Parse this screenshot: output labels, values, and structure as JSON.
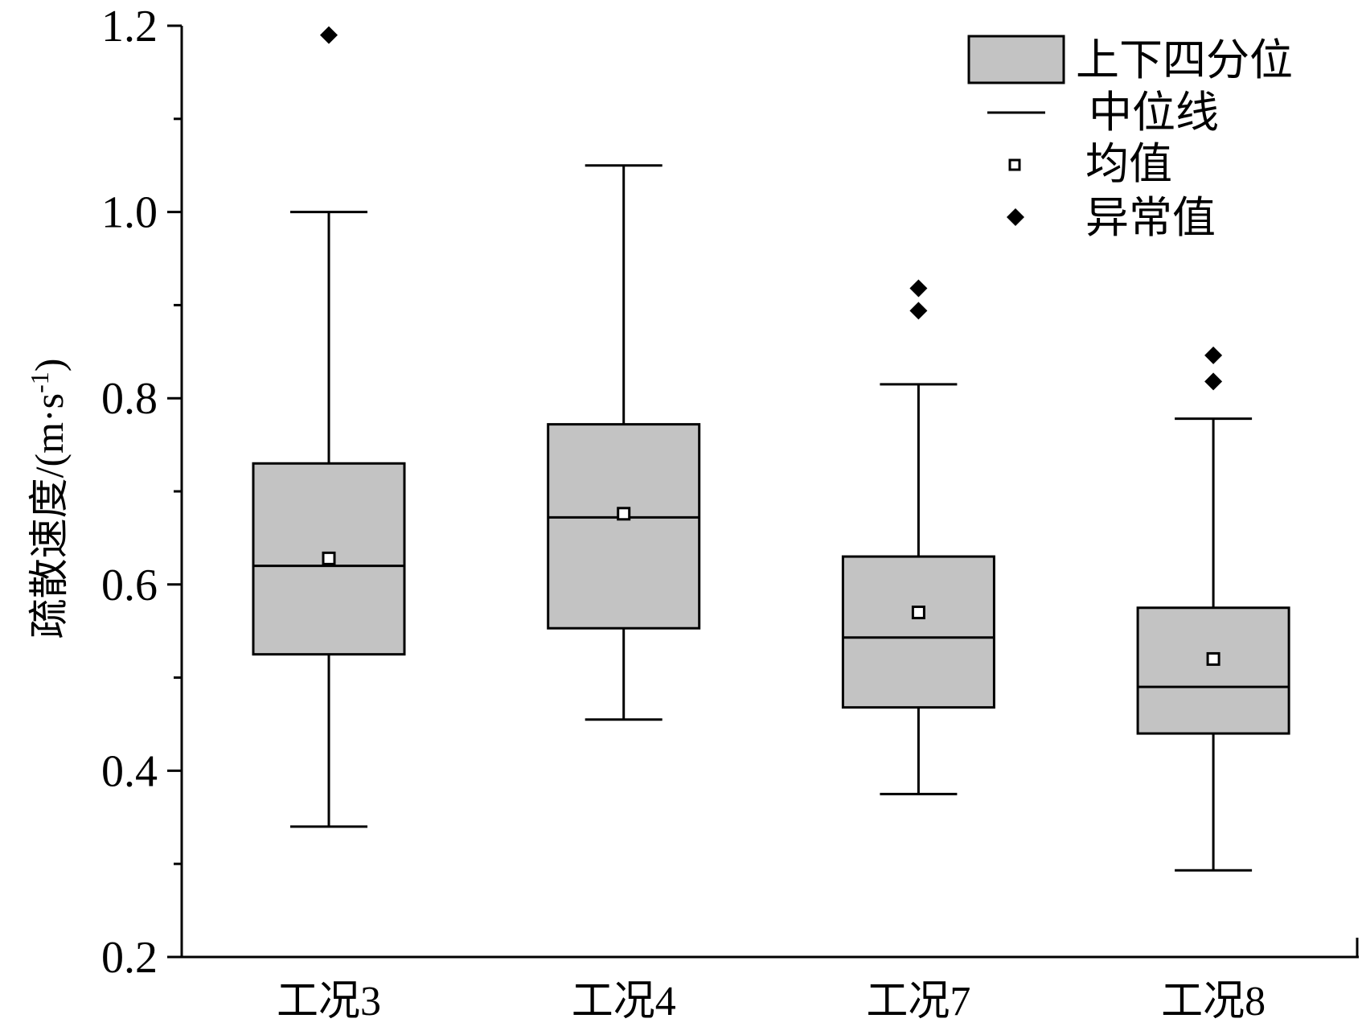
{
  "chart_data": {
    "type": "box",
    "ylabel": "疏散速度/(m·s",
    "ylabel_sup": "-1",
    "ylabel_close": ")",
    "ylim": [
      0.2,
      1.2
    ],
    "yticks": [
      "1.2",
      "1.0",
      "0.8",
      "0.6",
      "0.4",
      "0.2"
    ],
    "ytick_values": [
      1.2,
      1.0,
      0.8,
      0.6,
      0.4,
      0.2
    ],
    "yminor_ticks": [
      1.1,
      0.9,
      0.7,
      0.5,
      0.3
    ],
    "categories": [
      "工况3",
      "工况4",
      "工况7",
      "工况8"
    ],
    "boxes": [
      {
        "category": "工况3",
        "whisker_low": 0.34,
        "q1": 0.525,
        "median": 0.62,
        "q3": 0.73,
        "whisker_high": 1.0,
        "mean": 0.628,
        "outliers": [
          1.19
        ]
      },
      {
        "category": "工况4",
        "whisker_low": 0.455,
        "q1": 0.553,
        "median": 0.672,
        "q3": 0.772,
        "whisker_high": 1.05,
        "mean": 0.676,
        "outliers": []
      },
      {
        "category": "工况7",
        "whisker_low": 0.375,
        "q1": 0.468,
        "median": 0.543,
        "q3": 0.63,
        "whisker_high": 0.815,
        "mean": 0.57,
        "outliers": [
          0.918,
          0.894
        ]
      },
      {
        "category": "工况8",
        "whisker_low": 0.293,
        "q1": 0.44,
        "median": 0.49,
        "q3": 0.575,
        "whisker_high": 0.778,
        "mean": 0.52,
        "outliers": [
          0.846,
          0.818
        ]
      }
    ],
    "legend": {
      "position": "top-right",
      "items": [
        "上下四分位",
        "中位线",
        "均值",
        "异常值"
      ]
    },
    "colors": {
      "box_fill": "#c3c3c3",
      "stroke": "#000000"
    },
    "grid": false
  }
}
